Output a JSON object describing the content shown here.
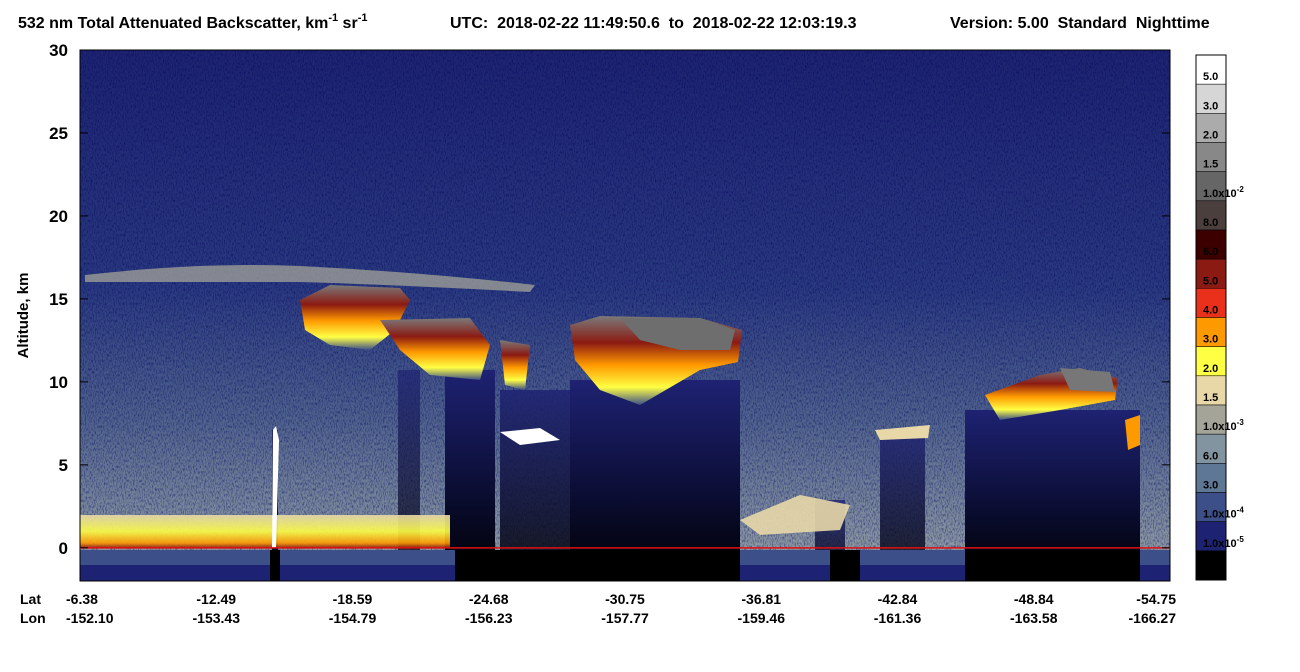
{
  "title": {
    "text": "532 nm Total Attenuated Backscatter, km",
    "exp1": "-1",
    "mid": " sr",
    "exp2": "-1"
  },
  "utc": "UTC:  2018-02-22 11:49:50.6  to  2018-02-22 12:03:19.3",
  "version": "Version: 5.00  Standard  Nighttime",
  "chart_data": {
    "type": "heatmap",
    "y_label": "Altitude, km",
    "ylim": [
      -2,
      30
    ],
    "yticks": [
      0,
      5,
      10,
      15,
      20,
      25,
      30
    ],
    "x_row_labels": [
      "Lat",
      "Lon"
    ],
    "lat": [
      -6.38,
      -12.49,
      -18.59,
      -24.68,
      -30.75,
      -36.81,
      -42.84,
      -48.84,
      -54.75
    ],
    "lon": [
      {
        "value": -152.1,
        "label": "-152.10"
      },
      -153.43,
      -154.79,
      -156.23,
      -157.77,
      -159.46,
      -161.36,
      -163.58,
      -166.27
    ],
    "surface_line_color": "#e01010",
    "colorbar": [
      {
        "color": "#ffffff",
        "label": "5.0"
      },
      {
        "color": "#d6d6d6",
        "label": "3.0"
      },
      {
        "color": "#ababab",
        "label": "2.0"
      },
      {
        "color": "#888888",
        "label": "1.5"
      },
      {
        "color": "#666666",
        "label": "1.0x10",
        "exp": "-2"
      },
      {
        "color": "#4a3f3c",
        "label": "8.0"
      },
      {
        "color": "#3c0000",
        "label": "6.0"
      },
      {
        "color": "#8b1a12",
        "label": "5.0"
      },
      {
        "color": "#e8301a",
        "label": "4.0"
      },
      {
        "color": "#ff9900",
        "label": "3.0"
      },
      {
        "color": "#ffff44",
        "label": "2.0"
      },
      {
        "color": "#e8d8a8",
        "label": "1.5"
      },
      {
        "color": "#a4a498",
        "label": "1.0x10",
        "exp": "-3"
      },
      {
        "color": "#8294a0",
        "label": "6.0"
      },
      {
        "color": "#5e7794",
        "label": "3.0"
      },
      {
        "color": "#3c4f88",
        "label": "1.0x10",
        "exp": "-4"
      },
      {
        "color": "#1e2272",
        "label": "1.0x10",
        "exp": "-5"
      },
      {
        "color": "#000000"
      }
    ]
  }
}
